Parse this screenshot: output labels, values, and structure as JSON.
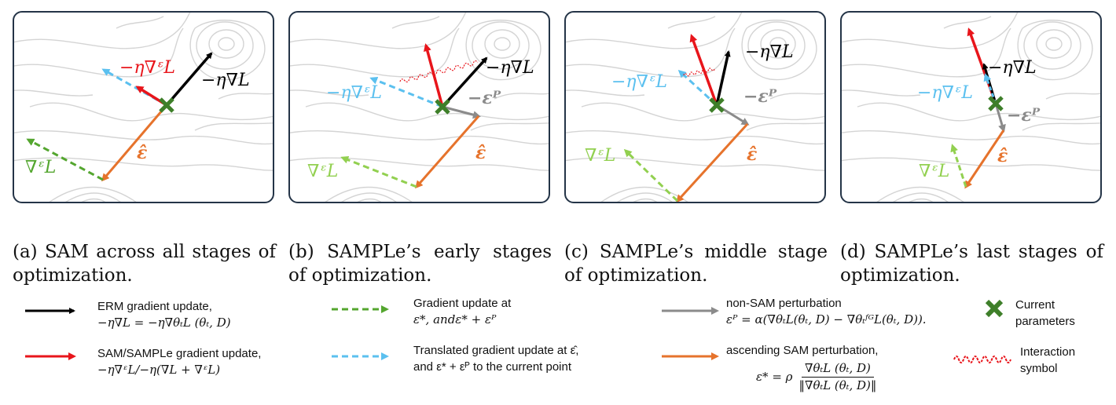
{
  "colors": {
    "erm": "#000000",
    "sam": "#e8151b",
    "grad_at": "#54a62f",
    "translated": "#5bc0ef",
    "nonsam": "#8b8b8b",
    "ascending": "#e6732c",
    "current": "#3e7f29",
    "interaction": "#e8151b",
    "panel_border": "#243447"
  },
  "panels": [
    {
      "id": "a",
      "labels": {
        "sam": "−η∇ᵋL",
        "erm": "−η∇L",
        "grad_at": "∇ᵋL",
        "eps_hat": "ε̂"
      }
    },
    {
      "id": "b",
      "labels": {
        "erm": "−η∇L",
        "translated": "−η∇ᵋL",
        "eps_p": "−εᴾ",
        "grad_at": "∇ᵋL",
        "eps_hat": "ε̂"
      }
    },
    {
      "id": "c",
      "labels": {
        "erm": "−η∇L",
        "translated": "−η∇ᵋL",
        "eps_p": "−εᴾ",
        "grad_at": "∇ᵋL",
        "eps_hat": "ε̂"
      }
    },
    {
      "id": "d",
      "labels": {
        "erm": "−η∇L",
        "translated": "−η∇ᵋL",
        "eps_p": "−εᴾ",
        "grad_at": "∇ᵋL",
        "eps_hat": "ε̂"
      }
    }
  ],
  "captions": [
    "(a) SAM across all stages of optimization.",
    "(b) SAMPLe’s early stages of optimization.",
    "(c) SAMPLe’s middle stage of optimization.",
    "(d) SAMPLe’s last stages of optimization."
  ],
  "legend": {
    "erm": {
      "line1": "ERM gradient update,",
      "line2": "−η∇L = −η∇θₜL (θₜ, D)"
    },
    "sam": {
      "line1": "SAM/SAMPLe gradient update,",
      "line2": "−η∇ᵋL/−η(∇L + ∇ᵋL)"
    },
    "grad_at": {
      "line1": "Gradient update at",
      "line2": "ε*, andε* + εᴾ"
    },
    "translated": {
      "line1": "Translated gradient update at  ε̂,",
      "line2": "and ε* + εᴾ to the current point"
    },
    "nonsam": {
      "line1": "non-SAM perturbation",
      "line2": "εᴾ = α(∇θₜL(θₜ, D) − ∇θₜᶠᴳL(θₜ, D))."
    },
    "ascending": {
      "line1": "ascending SAM perturbation,",
      "line2": "ε* = ρ",
      "frac_num": "∇θₜL (θₜ, D)",
      "frac_den": "‖∇θₜL (θₜ, D)‖"
    },
    "current": {
      "line1": "Current",
      "line2": "parameters"
    },
    "interaction": {
      "line1": "Interaction",
      "line2": "symbol"
    }
  }
}
